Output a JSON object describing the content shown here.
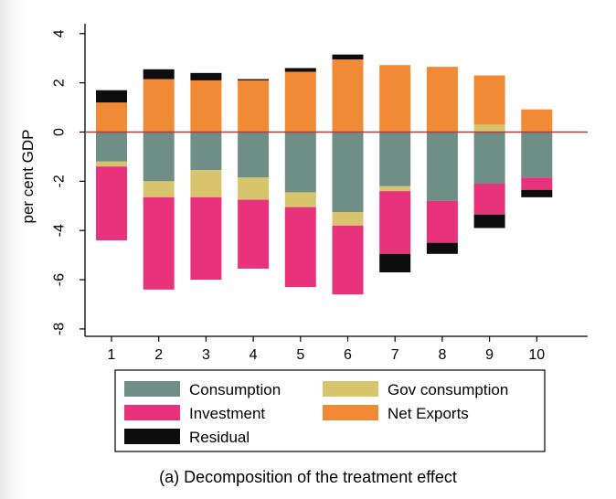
{
  "caption": "(a) Decomposition of the treatment effect",
  "chart_data": {
    "type": "bar",
    "stacked": true,
    "ylabel": "per cent GDP",
    "xlabel": "",
    "ylim": [
      -8.3,
      4.4
    ],
    "yticks": [
      -8,
      -6,
      -4,
      -2,
      0,
      2,
      4
    ],
    "categories": [
      "1",
      "2",
      "3",
      "4",
      "5",
      "6",
      "7",
      "8",
      "9",
      "10"
    ],
    "zero_line_color": "#b23a3a",
    "grid": false,
    "legend_position": "bottom",
    "series": [
      {
        "name": "Consumption",
        "color": "#6f8f86",
        "values": [
          -1.2,
          -2.0,
          -1.55,
          -1.85,
          -2.45,
          -3.25,
          -2.2,
          -2.8,
          -2.1,
          -1.85
        ]
      },
      {
        "name": "Gov consumption",
        "color": "#d9c46e",
        "values": [
          -0.2,
          -0.65,
          -1.1,
          -0.9,
          -0.6,
          -0.55,
          -0.2,
          0.0,
          0.3,
          0.0
        ]
      },
      {
        "name": "Investment",
        "color": "#e8337c",
        "values": [
          -3.0,
          -3.75,
          -3.35,
          -2.8,
          -3.25,
          -2.8,
          -2.55,
          -1.7,
          -1.25,
          -0.5
        ]
      },
      {
        "name": "Net Exports",
        "color": "#f08a35",
        "values": [
          1.2,
          2.15,
          2.1,
          2.1,
          2.45,
          2.95,
          2.72,
          2.65,
          2.0,
          0.92
        ]
      },
      {
        "name": "Residual",
        "color": "#0d0d0d",
        "values": [
          0.5,
          0.4,
          0.3,
          0.05,
          0.15,
          0.2,
          -0.75,
          -0.45,
          -0.55,
          -0.3
        ]
      }
    ]
  }
}
